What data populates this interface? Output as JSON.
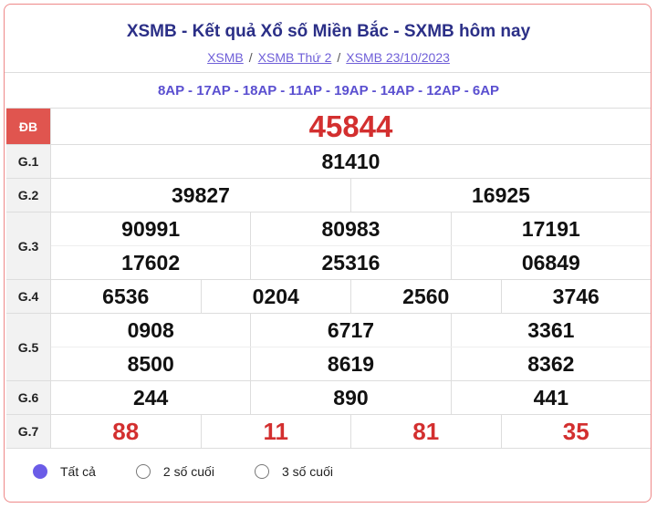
{
  "header": {
    "title": "XSMB - Kết quả Xổ số Miền Bắc - SXMB hôm nay",
    "breadcrumbs": [
      "XSMB",
      "XSMB Thứ 2",
      "XSMB 23/10/2023"
    ],
    "separator": "/",
    "codes": "8AP - 17AP - 18AP - 11AP - 19AP - 14AP - 12AP - 6AP"
  },
  "table": {
    "rows": [
      {
        "label": "ĐB",
        "lines": [
          [
            "45844"
          ]
        ]
      },
      {
        "label": "G.1",
        "lines": [
          [
            "81410"
          ]
        ]
      },
      {
        "label": "G.2",
        "lines": [
          [
            "39827",
            "16925"
          ]
        ]
      },
      {
        "label": "G.3",
        "lines": [
          [
            "90991",
            "80983",
            "17191"
          ],
          [
            "17602",
            "25316",
            "06849"
          ]
        ]
      },
      {
        "label": "G.4",
        "lines": [
          [
            "6536",
            "0204",
            "2560",
            "3746"
          ]
        ]
      },
      {
        "label": "G.5",
        "lines": [
          [
            "0908",
            "6717",
            "3361"
          ],
          [
            "8500",
            "8619",
            "8362"
          ]
        ]
      },
      {
        "label": "G.6",
        "lines": [
          [
            "244",
            "890",
            "441"
          ]
        ]
      },
      {
        "label": "G.7",
        "lines": [
          [
            "88",
            "11",
            "81",
            "35"
          ]
        ]
      }
    ]
  },
  "filters": [
    "Tất cả",
    "2 số cuối",
    "3 số cuối"
  ]
}
